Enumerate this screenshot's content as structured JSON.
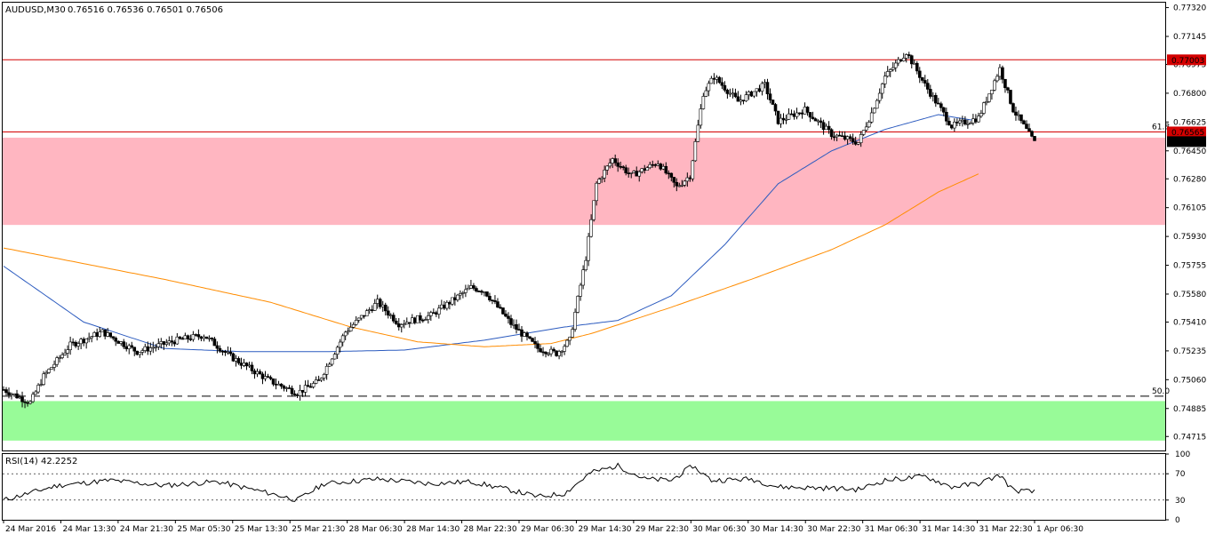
{
  "chart_data": {
    "type": "candlestick",
    "header": {
      "symbol_timeframe": "AUDUSD,M30",
      "ohlc": "0.76516 0.76536 0.76501 0.76506"
    },
    "price_axis": {
      "ylim": [
        0.7463,
        0.7735
      ],
      "ticks": [
        "0.77320",
        "0.77145",
        "0.76975",
        "0.76800",
        "0.76625",
        "0.76450",
        "0.76280",
        "0.76105",
        "0.75930",
        "0.75755",
        "0.75580",
        "0.75410",
        "0.75235",
        "0.75060",
        "0.74885",
        "0.74715"
      ]
    },
    "x_ticks": [
      "24 Mar 2016",
      "24 Mar 13:30",
      "24 Mar 21:30",
      "25 Mar 05:30",
      "25 Mar 13:30",
      "25 Mar 21:30",
      "28 Mar 06:30",
      "28 Mar 14:30",
      "28 Mar 22:30",
      "29 Mar 06:30",
      "29 Mar 14:30",
      "29 Mar 22:30",
      "30 Mar 06:30",
      "30 Mar 14:30",
      "30 Mar 22:30",
      "31 Mar 06:30",
      "31 Mar 14:30",
      "31 Mar 22:30",
      "1 Apr 06:30"
    ],
    "levels": {
      "resistance_red": {
        "value": 0.77003,
        "label": "0.77003",
        "color": "#d40000"
      },
      "fib_618": {
        "value": 0.76565,
        "label": "0.76565",
        "fib_label": "61.8",
        "color": "#d40000"
      },
      "current_price": {
        "value": 0.76506,
        "label": "0.76506"
      },
      "fib_500": {
        "value": 0.7496,
        "fib_label": "50.0",
        "style": "dashed"
      }
    },
    "zones": [
      {
        "name": "resistance-zone",
        "from": 0.76,
        "to": 0.7653,
        "color": "#ffb6c1"
      },
      {
        "name": "support-zone",
        "from": 0.7469,
        "to": 0.7493,
        "color": "#98fb98"
      }
    ],
    "moving_averages": [
      {
        "color": "#2c5bbf",
        "knots": [
          [
            0,
            0.7575
          ],
          [
            30,
            0.7541
          ],
          [
            60,
            0.7525
          ],
          [
            90,
            0.7523
          ],
          [
            120,
            0.7523
          ],
          [
            150,
            0.7524
          ],
          [
            180,
            0.753
          ],
          [
            210,
            0.7538
          ],
          [
            230,
            0.7542
          ],
          [
            250,
            0.7557
          ],
          [
            270,
            0.7588
          ],
          [
            290,
            0.7625
          ],
          [
            310,
            0.7645
          ],
          [
            330,
            0.7658
          ],
          [
            350,
            0.7667
          ],
          [
            365,
            0.7663
          ]
        ]
      },
      {
        "color": "#ff8c00",
        "knots": [
          [
            0,
            0.7586
          ],
          [
            60,
            0.7567
          ],
          [
            100,
            0.7553
          ],
          [
            130,
            0.7538
          ],
          [
            155,
            0.7529
          ],
          [
            180,
            0.7526
          ],
          [
            205,
            0.7528
          ],
          [
            220,
            0.7534
          ],
          [
            250,
            0.755
          ],
          [
            280,
            0.7567
          ],
          [
            310,
            0.7585
          ],
          [
            330,
            0.76
          ],
          [
            350,
            0.762
          ],
          [
            365,
            0.7631
          ]
        ]
      }
    ],
    "price_path": [
      [
        0,
        0.75
      ],
      [
        10,
        0.7492
      ],
      [
        15,
        0.7508
      ],
      [
        25,
        0.7527
      ],
      [
        37,
        0.7535
      ],
      [
        50,
        0.7523
      ],
      [
        65,
        0.753
      ],
      [
        75,
        0.7533
      ],
      [
        85,
        0.752
      ],
      [
        100,
        0.7505
      ],
      [
        110,
        0.7498
      ],
      [
        118,
        0.7505
      ],
      [
        128,
        0.7535
      ],
      [
        140,
        0.7553
      ],
      [
        148,
        0.754
      ],
      [
        160,
        0.7545
      ],
      [
        175,
        0.7562
      ],
      [
        180,
        0.756
      ],
      [
        190,
        0.754
      ],
      [
        200,
        0.7525
      ],
      [
        207,
        0.7522
      ],
      [
        212,
        0.753
      ],
      [
        218,
        0.758
      ],
      [
        222,
        0.7625
      ],
      [
        228,
        0.764
      ],
      [
        235,
        0.763
      ],
      [
        245,
        0.7638
      ],
      [
        252,
        0.7623
      ],
      [
        257,
        0.763
      ],
      [
        262,
        0.768
      ],
      [
        266,
        0.769
      ],
      [
        275,
        0.7675
      ],
      [
        285,
        0.7685
      ],
      [
        290,
        0.7663
      ],
      [
        300,
        0.767
      ],
      [
        310,
        0.7655
      ],
      [
        320,
        0.765
      ],
      [
        325,
        0.7668
      ],
      [
        330,
        0.769
      ],
      [
        338,
        0.7705
      ],
      [
        345,
        0.7685
      ],
      [
        355,
        0.766
      ],
      [
        365,
        0.7665
      ],
      [
        373,
        0.7695
      ],
      [
        378,
        0.767
      ],
      [
        386,
        0.765
      ]
    ],
    "rsi": {
      "label": "RSI(14) 42.2252",
      "ylim": [
        0,
        100
      ],
      "ticks": [
        "100",
        "70",
        "30",
        "0"
      ],
      "levels": [
        70,
        30
      ],
      "knots": [
        [
          0,
          30
        ],
        [
          20,
          52
        ],
        [
          40,
          60
        ],
        [
          60,
          52
        ],
        [
          80,
          58
        ],
        [
          100,
          40
        ],
        [
          110,
          30
        ],
        [
          120,
          55
        ],
        [
          140,
          62
        ],
        [
          160,
          55
        ],
        [
          175,
          58
        ],
        [
          190,
          45
        ],
        [
          200,
          35
        ],
        [
          210,
          40
        ],
        [
          220,
          72
        ],
        [
          230,
          82
        ],
        [
          240,
          62
        ],
        [
          250,
          60
        ],
        [
          258,
          82
        ],
        [
          265,
          60
        ],
        [
          280,
          62
        ],
        [
          290,
          50
        ],
        [
          310,
          48
        ],
        [
          320,
          46
        ],
        [
          330,
          60
        ],
        [
          345,
          66
        ],
        [
          355,
          50
        ],
        [
          365,
          55
        ],
        [
          373,
          68
        ],
        [
          378,
          45
        ],
        [
          386,
          42.2
        ]
      ]
    }
  }
}
